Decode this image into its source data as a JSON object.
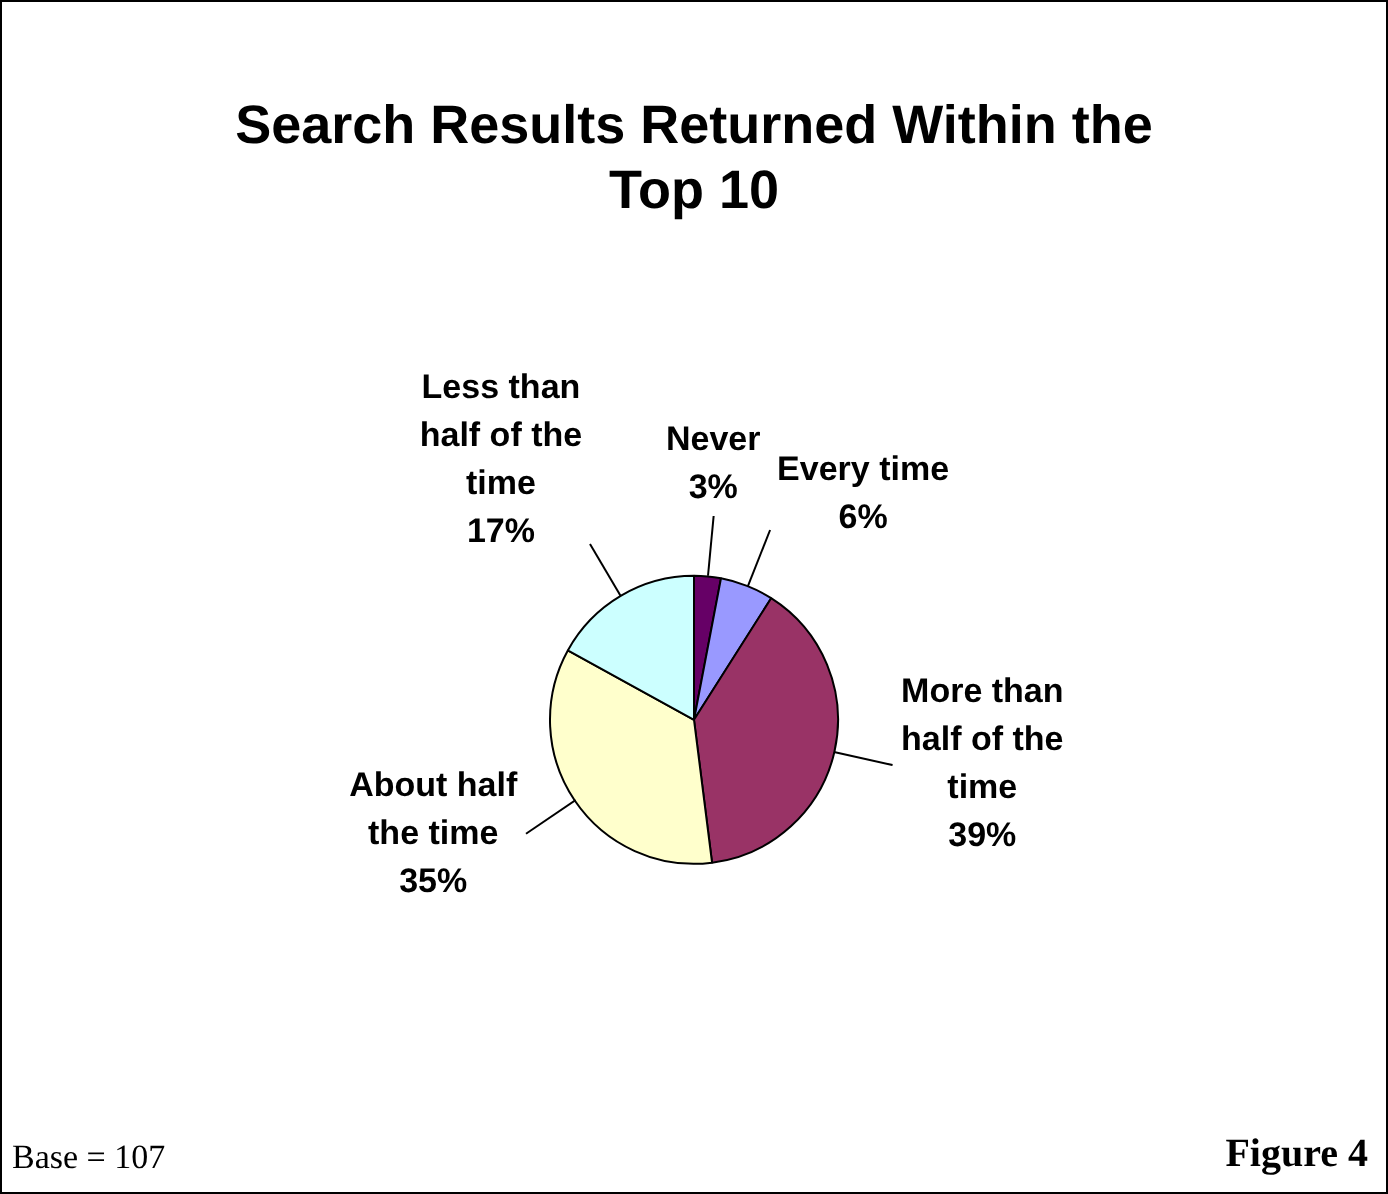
{
  "chart_data": {
    "type": "pie",
    "title": "Search Results Returned Within the Top 10",
    "categories": [
      "Never",
      "Every time",
      "More than half of the time",
      "About half the time",
      "Less than half of the time"
    ],
    "values": [
      3,
      6,
      39,
      35,
      17
    ],
    "colors": [
      "#660066",
      "#9999ff",
      "#993366",
      "#ffffcc",
      "#ccffff"
    ],
    "value_labels": [
      "3%",
      "6%",
      "39%",
      "35%",
      "17%"
    ],
    "legend": false,
    "annotations": [
      "Base = 107",
      "Figure 4"
    ]
  }
}
